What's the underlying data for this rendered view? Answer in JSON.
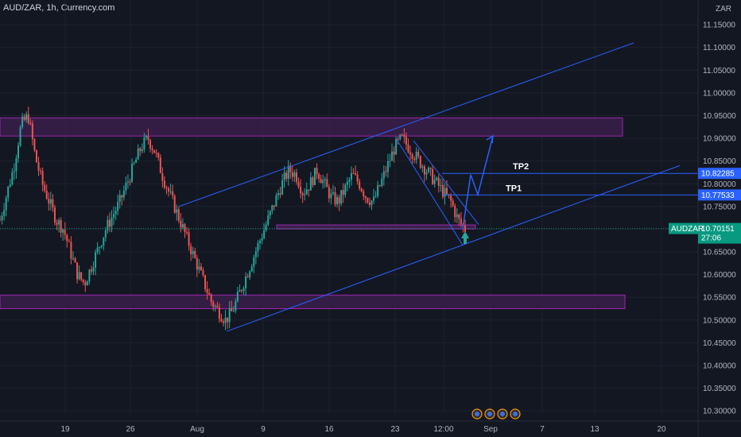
{
  "header": {
    "title": "AUD/ZAR, 1h, Currency.com",
    "currency": "ZAR"
  },
  "colors": {
    "background": "#131722",
    "up": "#26a69a",
    "down": "#ef5350",
    "zone_fill": "#3b1f4a",
    "zone_stroke": "#9c27b0",
    "channel": "#2962ff",
    "tp_tag": "#2962ff",
    "price_tag": "#089981"
  },
  "chart_data": {
    "type": "candlestick",
    "symbol": "AUDZAR",
    "ylim": [
      10.295,
      11.18
    ],
    "y_ticks": [
      "11.15000",
      "11.10000",
      "11.05000",
      "11.00000",
      "10.95000",
      "10.90000",
      "10.85000",
      "10.80000",
      "10.75000",
      "10.70000",
      "10.65000",
      "10.60000",
      "10.55000",
      "10.50000",
      "10.45000",
      "10.40000",
      "10.35000",
      "10.30000"
    ],
    "x_ticks": [
      "19",
      "26",
      "Aug",
      "9",
      "16",
      "23",
      "12:00",
      "Sep",
      "7",
      "13",
      "20"
    ],
    "close_path": [
      10.72,
      10.78,
      10.84,
      10.93,
      10.95,
      10.86,
      10.8,
      10.76,
      10.72,
      10.7,
      10.65,
      10.6,
      10.58,
      10.62,
      10.66,
      10.7,
      10.73,
      10.76,
      10.8,
      10.84,
      10.88,
      10.9,
      10.87,
      10.82,
      10.78,
      10.74,
      10.7,
      10.66,
      10.62,
      10.58,
      10.54,
      10.52,
      10.5,
      10.52,
      10.56,
      10.6,
      10.64,
      10.68,
      10.72,
      10.76,
      10.8,
      10.83,
      10.82,
      10.78,
      10.8,
      10.83,
      10.8,
      10.77,
      10.76,
      10.79,
      10.82,
      10.8,
      10.77,
      10.76,
      10.8,
      10.84,
      10.88,
      10.9,
      10.88,
      10.86,
      10.84,
      10.82,
      10.8,
      10.78,
      10.76,
      10.72,
      10.7
    ],
    "last_price": {
      "label": "AUDZAR",
      "value": "10.70151",
      "countdown": "27:06"
    },
    "tp_levels": [
      {
        "name": "TP2",
        "value": "10.82285"
      },
      {
        "name": "TP1",
        "value": "10.77533"
      }
    ],
    "zones": [
      {
        "top": 10.945,
        "bottom": 10.905
      },
      {
        "top": 10.555,
        "bottom": 10.525
      }
    ],
    "support_line": 10.705,
    "channel_upper": [
      [
        10.75,
        10.905
      ],
      [
        10.905,
        11.11
      ]
    ],
    "channel_lower": [
      [
        10.475,
        10.665
      ],
      [
        10.665,
        10.84
      ]
    ]
  }
}
